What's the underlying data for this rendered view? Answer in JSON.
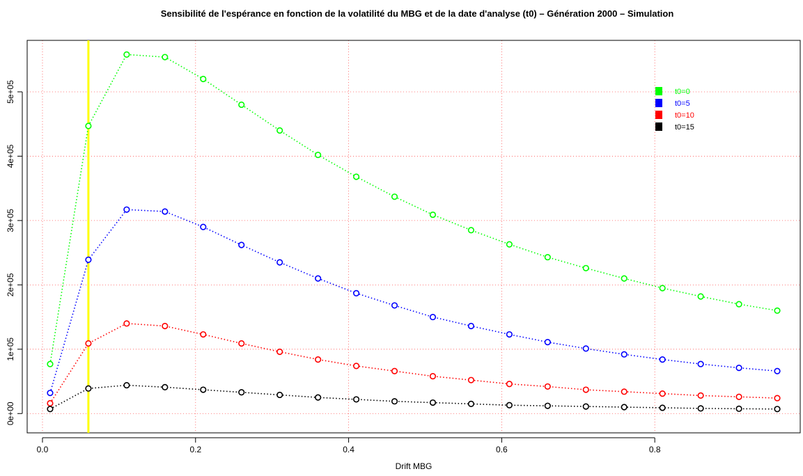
{
  "chart_data": {
    "type": "line",
    "title": "Sensibilité de l'espérance en fonction de la volatilité du MBG et de la date d'analyse (t0) – Génération 2000 – Simulation",
    "xlabel": "Drift MBG",
    "ylabel": "",
    "xlim": [
      -0.02,
      0.99
    ],
    "ylim": [
      -30000,
      580000
    ],
    "x_ticks": [
      0.0,
      0.2,
      0.4,
      0.6,
      0.8
    ],
    "x_tick_labels": [
      "0.0",
      "0.2",
      "0.4",
      "0.6",
      "0.8"
    ],
    "y_ticks": [
      0,
      100000,
      200000,
      300000,
      400000,
      500000
    ],
    "y_tick_labels": [
      "0e+00",
      "1e+05",
      "2e+05",
      "3e+05",
      "4e+05",
      "5e+05"
    ],
    "grid": true,
    "vline": {
      "x": 0.06,
      "color": "#ffff00"
    },
    "x": [
      0.01,
      0.06,
      0.11,
      0.16,
      0.21,
      0.26,
      0.31,
      0.36,
      0.41,
      0.46,
      0.51,
      0.56,
      0.61,
      0.66,
      0.71,
      0.76,
      0.81,
      0.86,
      0.91,
      0.96
    ],
    "series": [
      {
        "name": "t0=0",
        "color": "#00ff00",
        "values": [
          77000,
          447000,
          558000,
          554000,
          520000,
          480000,
          440000,
          402000,
          368000,
          337000,
          309000,
          285000,
          263000,
          243000,
          226000,
          210000,
          195000,
          182000,
          170000,
          160000
        ]
      },
      {
        "name": "t0=5",
        "color": "#0000ff",
        "values": [
          32000,
          239000,
          317000,
          314000,
          290000,
          262000,
          235000,
          210000,
          187000,
          168000,
          150000,
          136000,
          123000,
          111000,
          101000,
          92000,
          84000,
          77000,
          71000,
          66000
        ]
      },
      {
        "name": "t0=10",
        "color": "#ff0000",
        "values": [
          16000,
          109000,
          140000,
          136000,
          123000,
          109000,
          96000,
          84000,
          74000,
          66000,
          58000,
          52000,
          46000,
          42000,
          37000,
          34000,
          31000,
          28000,
          26000,
          24000
        ]
      },
      {
        "name": "t0=15",
        "color": "#000000",
        "values": [
          7000,
          39000,
          44000,
          41000,
          37000,
          33000,
          29000,
          25000,
          22000,
          19000,
          17000,
          15000,
          13000,
          12000,
          11000,
          10000,
          9000,
          8000,
          7500,
          7000
        ]
      }
    ],
    "legend_position": "top-right"
  }
}
